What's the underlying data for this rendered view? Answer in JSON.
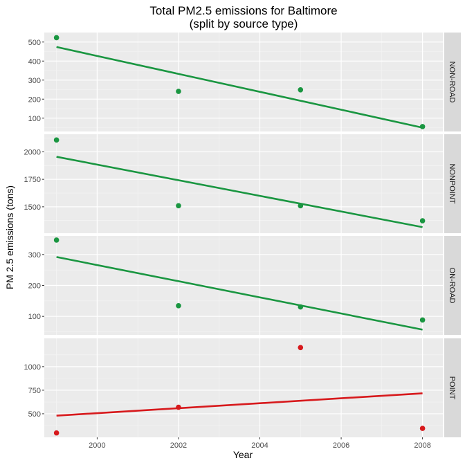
{
  "chart_data": {
    "type": "scatter",
    "title": "Total PM2.5 emissions for Baltimore",
    "subtitle": "(split by source type)",
    "xlabel": "Year",
    "ylabel": "PM 2.5 emissions (tons)",
    "xlim": [
      1998.7,
      2008.5
    ],
    "x_ticks": [
      2000,
      2002,
      2004,
      2006,
      2008
    ],
    "x_tick_labels": [
      "2000",
      "2002",
      "2004",
      "2006",
      "2008"
    ],
    "grid": true,
    "facets": [
      {
        "name": "NON-ROAD",
        "color": "#1a9641",
        "ylim": [
          30,
          550
        ],
        "y_ticks": [
          100,
          200,
          300,
          400,
          500
        ],
        "y_tick_labels": [
          "100",
          "200",
          "300",
          "400",
          "500"
        ],
        "points": [
          [
            1999,
            522.9
          ],
          [
            2002,
            240.8
          ],
          [
            2005,
            248.9
          ],
          [
            2008,
            55.8
          ]
        ],
        "trend": [
          [
            1999,
            474
          ],
          [
            2008,
            50
          ]
        ]
      },
      {
        "name": "NONPOINT",
        "color": "#1a9641",
        "ylim": [
          1260,
          2160
        ],
        "y_ticks": [
          1500,
          1750,
          2000
        ],
        "y_tick_labels": [
          "1500",
          "1750",
          "2000"
        ],
        "points": [
          [
            1999,
            2107.6
          ],
          [
            2002,
            1509.5
          ],
          [
            2005,
            1509.5
          ],
          [
            2008,
            1373.2
          ]
        ],
        "trend": [
          [
            1999,
            1955
          ],
          [
            2008,
            1315
          ]
        ]
      },
      {
        "name": "ON-ROAD",
        "color": "#1a9641",
        "ylim": [
          40,
          360
        ],
        "y_ticks": [
          100,
          200,
          300
        ],
        "y_tick_labels": [
          "100",
          "200",
          "300"
        ],
        "points": [
          [
            1999,
            346.8
          ],
          [
            2002,
            134.3
          ],
          [
            2005,
            130.4
          ],
          [
            2008,
            88.3
          ]
        ],
        "trend": [
          [
            1999,
            292
          ],
          [
            2008,
            57
          ]
        ]
      },
      {
        "name": "POINT",
        "color": "#d7191c",
        "ylim": [
          250,
          1300
        ],
        "y_ticks": [
          500,
          750,
          1000
        ],
        "y_tick_labels": [
          "500",
          "750",
          "1000"
        ],
        "points": [
          [
            1999,
            296.8
          ],
          [
            2002,
            569.3
          ],
          [
            2005,
            1202.5
          ],
          [
            2008,
            344.98
          ]
        ],
        "trend": [
          [
            1999,
            480
          ],
          [
            2008,
            717
          ]
        ]
      }
    ]
  }
}
